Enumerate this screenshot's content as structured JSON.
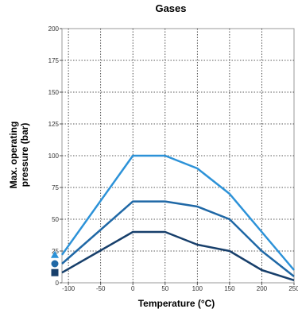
{
  "chart_data": {
    "type": "line",
    "title": "Gases",
    "xlabel": "Temperature (°C)",
    "ylabel_lines": [
      "Max. operating",
      "pressure (bar)"
    ],
    "x_ticks": [
      "-100",
      "-50",
      "0",
      "50",
      "100",
      "150",
      "200",
      "250"
    ],
    "y_ticks": [
      "0",
      "25",
      "50",
      "75",
      "100",
      "125",
      "150",
      "175",
      "200"
    ],
    "xlim": [
      -110,
      250
    ],
    "ylim": [
      0,
      200
    ],
    "grid": true,
    "series": [
      {
        "marker": "triangle",
        "color": "#2c92d8",
        "x": [
          -110,
          0,
          50,
          100,
          150,
          200,
          250
        ],
        "y": [
          22,
          100,
          100,
          90,
          70,
          40,
          10
        ]
      },
      {
        "marker": "circle",
        "color": "#1f68a6",
        "x": [
          -110,
          0,
          50,
          100,
          150,
          200,
          250
        ],
        "y": [
          15,
          64,
          64,
          60,
          50,
          25,
          5
        ]
      },
      {
        "marker": "square",
        "color": "#173f6b",
        "x": [
          -110,
          0,
          50,
          100,
          150,
          200,
          250
        ],
        "y": [
          8,
          40,
          40,
          30,
          25,
          10,
          2
        ]
      }
    ]
  }
}
